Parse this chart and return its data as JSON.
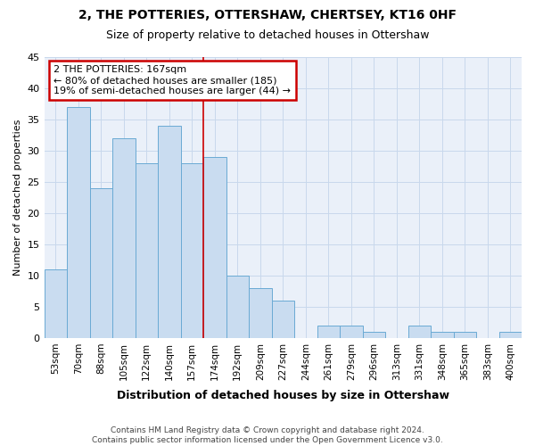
{
  "title1": "2, THE POTTERIES, OTTERSHAW, CHERTSEY, KT16 0HF",
  "title2": "Size of property relative to detached houses in Ottershaw",
  "xlabel": "Distribution of detached houses by size in Ottershaw",
  "ylabel": "Number of detached properties",
  "bin_labels": [
    "53sqm",
    "70sqm",
    "88sqm",
    "105sqm",
    "122sqm",
    "140sqm",
    "157sqm",
    "174sqm",
    "192sqm",
    "209sqm",
    "227sqm",
    "244sqm",
    "261sqm",
    "279sqm",
    "296sqm",
    "313sqm",
    "331sqm",
    "348sqm",
    "365sqm",
    "383sqm",
    "400sqm"
  ],
  "bar_heights": [
    11,
    37,
    24,
    32,
    28,
    34,
    28,
    29,
    10,
    8,
    6,
    0,
    2,
    2,
    1,
    0,
    2,
    1,
    1,
    0,
    1
  ],
  "bar_color": "#c9dcf0",
  "bar_edge_color": "#6aaad4",
  "vline_color": "#cc0000",
  "vline_x_index": 7,
  "annotation_text": "2 THE POTTERIES: 167sqm\n← 80% of detached houses are smaller (185)\n19% of semi-detached houses are larger (44) →",
  "annotation_box_facecolor": "#ffffff",
  "annotation_box_edgecolor": "#cc0000",
  "bg_color": "#eaf0f9",
  "grid_color": "#c8d8ec",
  "fig_bg_color": "#ffffff",
  "footnote": "Contains HM Land Registry data © Crown copyright and database right 2024.\nContains public sector information licensed under the Open Government Licence v3.0.",
  "ylim": [
    0,
    45
  ],
  "yticks": [
    0,
    5,
    10,
    15,
    20,
    25,
    30,
    35,
    40,
    45
  ]
}
